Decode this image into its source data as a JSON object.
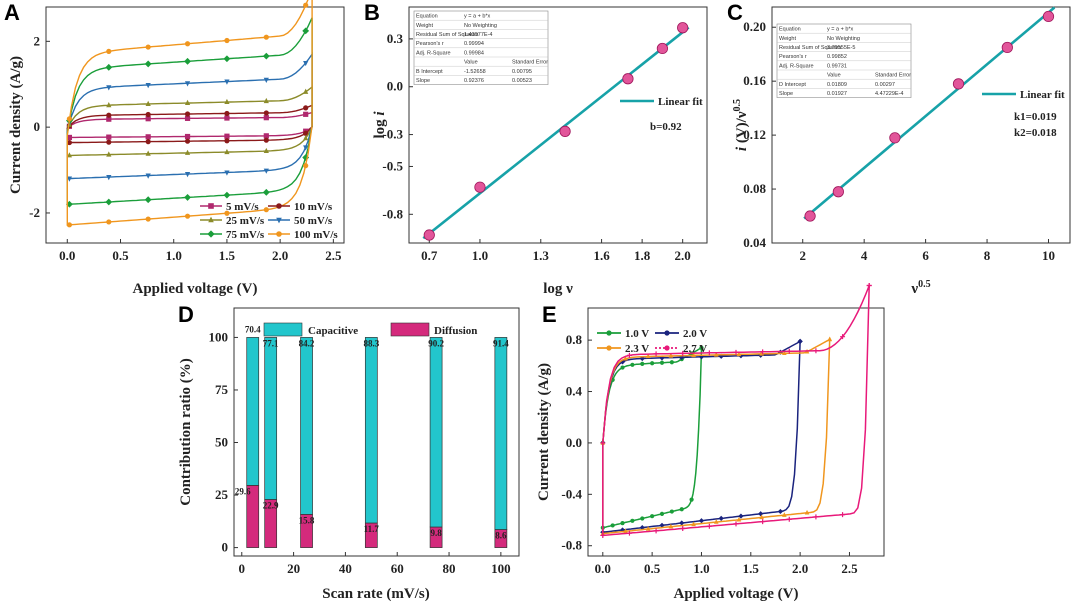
{
  "chart_data": [
    {
      "panel": "A",
      "type": "line",
      "xlabel": "Applied voltage (V)",
      "ylabel": "Current density (A/g)",
      "xlim": [
        -0.2,
        2.6
      ],
      "ylim": [
        -2.7,
        2.8
      ],
      "xticks": [
        "0.0",
        "0.5",
        "1.0",
        "1.5",
        "2.0",
        "2.5"
      ],
      "yticks": [
        "-2",
        "0",
        "2"
      ],
      "series": [
        {
          "name": "5 mV/s",
          "color": "#b0286e",
          "marker": "square",
          "scale": 0.2
        },
        {
          "name": "10 mV/s",
          "color": "#8b1a1a",
          "marker": "circle",
          "scale": 0.3
        },
        {
          "name": "25 mV/s",
          "color": "#8b8b2a",
          "marker": "triangle",
          "scale": 0.55
        },
        {
          "name": "50 mV/s",
          "color": "#2a6fb0",
          "marker": "tri-down",
          "scale": 1.0
        },
        {
          "name": "75 mV/s",
          "color": "#1a9e3a",
          "marker": "diamond",
          "scale": 1.5
        },
        {
          "name": "100 mV/s",
          "color": "#f0961e",
          "marker": "circle",
          "scale": 1.9
        }
      ]
    },
    {
      "panel": "B",
      "type": "scatter",
      "xlabel": "log ν",
      "ylabel": "log i",
      "xlim": [
        0.65,
        2.12
      ],
      "ylim": [
        -0.98,
        0.5
      ],
      "xticks": [
        "0.7",
        "1.0",
        "1.3",
        "1.6",
        "1.8",
        "2.0"
      ],
      "yticks": [
        "-0.8",
        "-0.5",
        "-0.3",
        "0.0",
        "0.3"
      ],
      "x": [
        0.75,
        1.0,
        1.42,
        1.73,
        1.9,
        2.0
      ],
      "y": [
        -0.93,
        -0.63,
        -0.28,
        0.05,
        0.24,
        0.37
      ],
      "fit_label": "Linear fit",
      "annotation": "b=0.92",
      "table": [
        [
          "Equation",
          "y = a + b*x",
          ""
        ],
        [
          "Weight",
          "No Weighting",
          ""
        ],
        [
          "Residual Sum of Squares",
          "1.43977E-4",
          ""
        ],
        [
          "Pearson's r",
          "0.99994",
          ""
        ],
        [
          "Adj. R-Square",
          "0.99984",
          ""
        ],
        [
          "",
          "Value",
          "Standard Error"
        ],
        [
          "B  Intercept",
          "-1.52658",
          "0.00795"
        ],
        [
          "Slope",
          "0.92376",
          "0.00523"
        ]
      ]
    },
    {
      "panel": "C",
      "type": "scatter",
      "xlabel": "ν0.5",
      "ylabel": "i (V)/ν0.5",
      "xlim": [
        1.0,
        10.7
      ],
      "ylim": [
        0.04,
        0.215
      ],
      "xticks": [
        "2",
        "4",
        "6",
        "8",
        "10"
      ],
      "yticks": [
        "0.04",
        "0.08",
        "0.12",
        "0.16",
        "0.20"
      ],
      "x": [
        2.24,
        3.16,
        5.0,
        7.07,
        8.66,
        10.0
      ],
      "y": [
        0.06,
        0.078,
        0.118,
        0.158,
        0.185,
        0.208
      ],
      "fit_label": "Linear fit",
      "annotations": [
        "k1=0.019",
        "k2=0.018"
      ],
      "table": [
        [
          "Equation",
          "y = a + b*x",
          ""
        ],
        [
          "Weight",
          "No Weighting",
          ""
        ],
        [
          "Residual Sum of Squares",
          "3.79555E-5",
          ""
        ],
        [
          "Pearson's r",
          "0.99852",
          ""
        ],
        [
          "Adj. R-Square",
          "0.99731",
          ""
        ],
        [
          "",
          "Value",
          "Standard Error"
        ],
        [
          "D  Intercept",
          "0.01809",
          "0.00297"
        ],
        [
          "Slope",
          "0.01927",
          "4.47229E-4"
        ]
      ]
    },
    {
      "panel": "D",
      "type": "bar",
      "xlabel": "Scan rate (mV/s)",
      "ylabel": "Contribution ratio (%)",
      "xlim": [
        -3,
        107
      ],
      "ylim": [
        -4,
        114
      ],
      "xticks": [
        "0",
        "20",
        "40",
        "60",
        "80",
        "100"
      ],
      "yticks": [
        "0",
        "25",
        "50",
        "75",
        "100"
      ],
      "legend": [
        "Capacitive",
        "Diffusion"
      ],
      "colors": {
        "capacitive": "#22c6cc",
        "diffusion": "#d42a7c"
      },
      "categories": [
        5,
        10,
        25,
        50,
        75,
        100
      ],
      "series": [
        {
          "name": "Capacitive",
          "values": [
            70.4,
            77.1,
            84.2,
            88.3,
            90.2,
            91.4
          ]
        },
        {
          "name": "Diffusion",
          "values": [
            29.6,
            22.9,
            15.8,
            11.7,
            9.8,
            8.6
          ]
        }
      ]
    },
    {
      "panel": "E",
      "type": "line",
      "xlabel": "Applied voltage (V)",
      "ylabel": "Current density (A/g)",
      "xlim": [
        -0.15,
        2.85
      ],
      "ylim": [
        -0.88,
        1.05
      ],
      "xticks": [
        "0.0",
        "0.5",
        "1.0",
        "1.5",
        "2.0",
        "2.5"
      ],
      "yticks": [
        "-0.8",
        "-0.4",
        "0.0",
        "0.4",
        "0.8"
      ],
      "series": [
        {
          "name": "1.0 V",
          "color": "#1a9e3a",
          "vmax": 1.0
        },
        {
          "name": "2.0 V",
          "color": "#1a237e",
          "vmax": 2.0
        },
        {
          "name": "2.3 V",
          "color": "#f0961e",
          "vmax": 2.3
        },
        {
          "name": "2.7 V",
          "color": "#e8197a",
          "vmax": 2.7
        }
      ]
    }
  ],
  "panel_labels": [
    "A",
    "B",
    "C",
    "D",
    "E"
  ]
}
